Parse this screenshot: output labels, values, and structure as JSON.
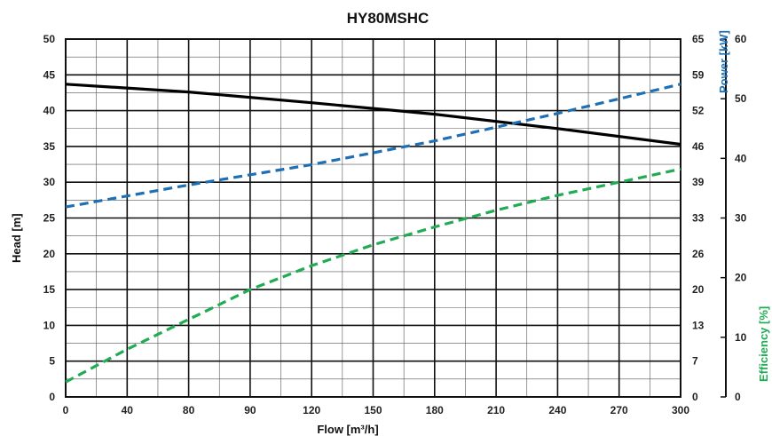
{
  "chart_data": {
    "type": "line",
    "title": "HY80MSHC",
    "xlabel": "Flow [m³/h]",
    "ylabel_left": "Head [m]",
    "ylabel_power": "Power [kW]",
    "ylabel_efficiency": "Efficiency [%]",
    "xlim": [
      0,
      300
    ],
    "x_ticks": [
      "0",
      "40",
      "80",
      "90",
      "120",
      "150",
      "180",
      "210",
      "240",
      "270",
      "300"
    ],
    "ylim_head": [
      0,
      50
    ],
    "head_ticks": [
      "0",
      "5",
      "10",
      "15",
      "20",
      "25",
      "30",
      "35",
      "40",
      "45",
      "50"
    ],
    "ylim_power": [
      0,
      65
    ],
    "power_ticks": [
      "0",
      "7",
      "13",
      "20",
      "26",
      "33",
      "39",
      "46",
      "52",
      "59",
      "65"
    ],
    "ylim_efficiency": [
      0,
      60
    ],
    "efficiency_ticks": [
      "0",
      "10",
      "20",
      "30",
      "40",
      "50",
      "60"
    ],
    "grid": true,
    "series": [
      {
        "name": "Head [m]",
        "axis": "head",
        "style": "solid",
        "color": "#000000",
        "x": [
          0,
          60,
          120,
          180,
          240,
          300
        ],
        "y": [
          43.7,
          42.6,
          41.1,
          39.5,
          37.5,
          35.3
        ]
      },
      {
        "name": "Power [kW]",
        "axis": "power",
        "style": "dashed",
        "color": "#1f6fb5",
        "x": [
          0,
          60,
          120,
          180,
          240,
          300
        ],
        "y": [
          34.5,
          38.5,
          42.2,
          46.5,
          51.5,
          56.8
        ]
      },
      {
        "name": "Efficiency [%]",
        "axis": "efficiency",
        "style": "dashed",
        "color": "#1fac53",
        "x": [
          0,
          30,
          60,
          90,
          120,
          150,
          180,
          210,
          240,
          270,
          300
        ],
        "y": [
          2.5,
          8,
          13,
          18,
          22,
          25.5,
          28.5,
          31.3,
          33.8,
          36,
          38.2
        ]
      }
    ]
  }
}
